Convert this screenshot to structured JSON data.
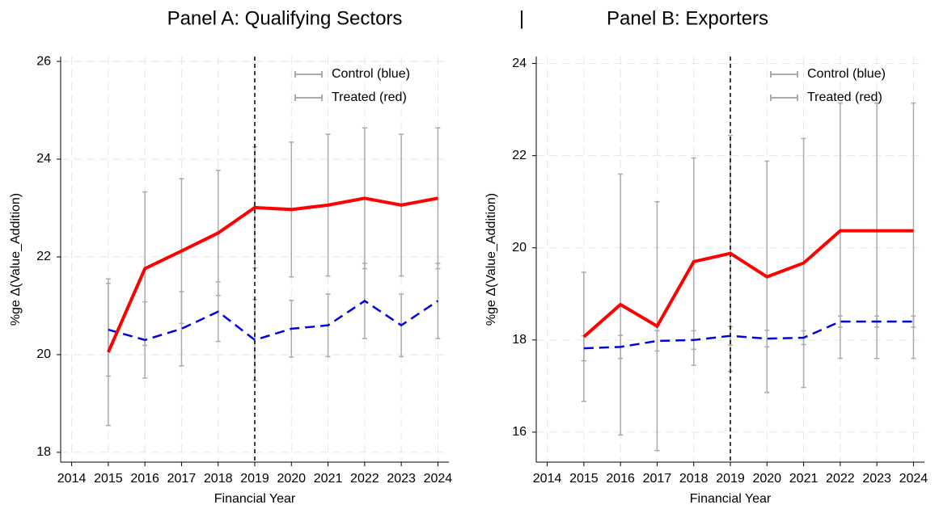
{
  "separator": "|",
  "chart_data": [
    {
      "type": "line",
      "title": "Panel A: Qualifying Sectors",
      "xlabel": "Financial Year",
      "ylabel": "%ge Δ(Value_Addition)",
      "x": [
        2015,
        2016,
        2017,
        2018,
        2019,
        2020,
        2021,
        2022,
        2023,
        2024
      ],
      "series": [
        {
          "name": "Control (blue)",
          "color": "#0000e0",
          "dash": true,
          "values": [
            20.51,
            20.3,
            20.53,
            20.88,
            20.3,
            20.53,
            20.6,
            21.1,
            20.6,
            21.1
          ],
          "errors": [
            0.95,
            0.78,
            0.76,
            0.61,
            0.83,
            0.58,
            0.64,
            0.77,
            0.64,
            0.77
          ]
        },
        {
          "name": "Treated (red)",
          "color": "#ff0000",
          "dash": false,
          "values": [
            20.05,
            21.76,
            22.12,
            22.49,
            23.01,
            22.97,
            23.06,
            23.2,
            23.06,
            23.2
          ],
          "errors": [
            1.5,
            1.57,
            1.48,
            1.28,
            1.24,
            1.38,
            1.45,
            1.44,
            1.45,
            1.44
          ]
        }
      ],
      "xlim": [
        2013.7,
        2024.3
      ],
      "ylim": [
        17.8,
        26.1
      ],
      "xticks": [
        2014,
        2015,
        2016,
        2017,
        2018,
        2019,
        2020,
        2021,
        2022,
        2023,
        2024
      ],
      "yticks": [
        18,
        20,
        22,
        24,
        26
      ],
      "vline": 2019,
      "grid": true,
      "legend": "upper right"
    },
    {
      "type": "line",
      "title": "Panel B: Exporters",
      "xlabel": "Financial Year",
      "ylabel": "%ge Δ(Value_Addition)",
      "x": [
        2015,
        2016,
        2017,
        2018,
        2019,
        2020,
        2021,
        2022,
        2023,
        2024
      ],
      "series": [
        {
          "name": "Control (blue)",
          "color": "#0000e0",
          "dash": true,
          "values": [
            17.82,
            17.85,
            17.98,
            18.0,
            18.09,
            18.03,
            18.05,
            18.4,
            18.4,
            18.4
          ],
          "errors": [
            0.27,
            0.25,
            0.22,
            0.2,
            0.2,
            0.18,
            0.15,
            0.12,
            0.12,
            0.12
          ]
        },
        {
          "name": "Treated (red)",
          "color": "#ff0000",
          "dash": false,
          "values": [
            18.07,
            18.77,
            18.3,
            19.7,
            19.88,
            19.37,
            19.67,
            20.37,
            20.37,
            20.37
          ],
          "errors": [
            1.4,
            2.83,
            2.7,
            2.25,
            2.56,
            2.51,
            2.7,
            2.77,
            2.77,
            2.77
          ]
        }
      ],
      "xlim": [
        2013.7,
        2024.3
      ],
      "ylim": [
        15.35,
        24.15
      ],
      "xticks": [
        2014,
        2015,
        2016,
        2017,
        2018,
        2019,
        2020,
        2021,
        2022,
        2023,
        2024
      ],
      "yticks": [
        16,
        18,
        20,
        22,
        24
      ],
      "vline": 2019,
      "grid": true,
      "legend": "upper right"
    }
  ]
}
